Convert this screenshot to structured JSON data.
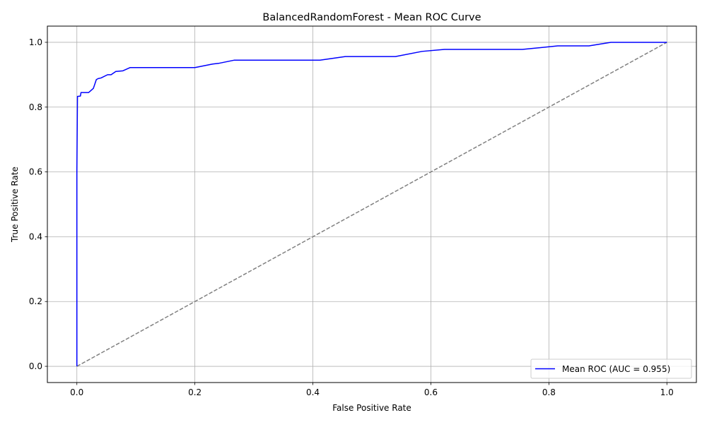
{
  "chart_data": {
    "type": "line",
    "title": "BalancedRandomForest - Mean ROC Curve",
    "xlabel": "False Positive Rate",
    "ylabel": "True Positive Rate",
    "xlim": [
      -0.05,
      1.05
    ],
    "ylim": [
      -0.05,
      1.05
    ],
    "xticks": [
      0.0,
      0.2,
      0.4,
      0.6,
      0.8,
      1.0
    ],
    "xtick_labels": [
      "0.0",
      "0.2",
      "0.4",
      "0.6",
      "0.8",
      "1.0"
    ],
    "yticks": [
      0.0,
      0.2,
      0.4,
      0.6,
      0.8,
      1.0
    ],
    "ytick_labels": [
      "0.0",
      "0.2",
      "0.4",
      "0.6",
      "0.8",
      "1.0"
    ],
    "grid": true,
    "legend_position": "lower-right",
    "series": [
      {
        "name": "Mean ROC (AUC = 0.955)",
        "color": "#0000ff",
        "style": "solid",
        "x": [
          0.0,
          0.0,
          0.001,
          0.001,
          0.006,
          0.007,
          0.02,
          0.028,
          0.033,
          0.036,
          0.041,
          0.052,
          0.058,
          0.066,
          0.078,
          0.09,
          0.2,
          0.23,
          0.24,
          0.267,
          0.3,
          0.412,
          0.455,
          0.54,
          0.585,
          0.623,
          0.755,
          0.815,
          0.868,
          0.905,
          1.0
        ],
        "y": [
          0.0,
          0.6,
          0.832,
          0.833,
          0.834,
          0.845,
          0.845,
          0.858,
          0.885,
          0.888,
          0.89,
          0.9,
          0.9,
          0.91,
          0.912,
          0.922,
          0.922,
          0.933,
          0.935,
          0.945,
          0.945,
          0.945,
          0.956,
          0.956,
          0.972,
          0.978,
          0.978,
          0.989,
          0.989,
          1.0,
          1.0
        ]
      },
      {
        "name": "",
        "color": "#808080",
        "style": "dashed",
        "x": [
          0.0,
          1.0
        ],
        "y": [
          0.0,
          1.0
        ]
      }
    ]
  }
}
